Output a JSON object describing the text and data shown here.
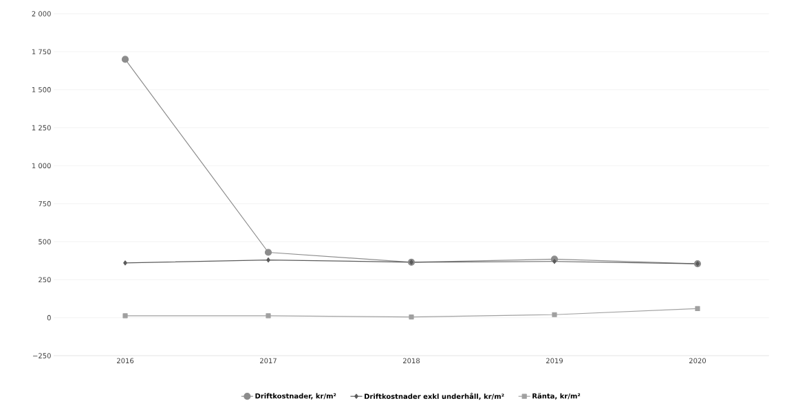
{
  "chart_data": {
    "type": "line",
    "categories": [
      "2016",
      "2017",
      "2018",
      "2019",
      "2020"
    ],
    "series": [
      {
        "name": "Driftkostnader, kr/m²",
        "color": "#8c8c8c",
        "marker": "circle",
        "values": [
          1700,
          430,
          365,
          385,
          355
        ]
      },
      {
        "name": "Driftkostnader exkl underhåll, kr/m²",
        "color": "#5a5a5a",
        "marker": "diamond",
        "values": [
          360,
          380,
          365,
          370,
          355
        ]
      },
      {
        "name": "Ränta, kr/m²",
        "color": "#a0a0a0",
        "marker": "square",
        "values": [
          13,
          13,
          5,
          20,
          60
        ]
      }
    ],
    "ylim": [
      -250,
      2000
    ],
    "yticks": [
      {
        "value": -250,
        "label": "−250"
      },
      0,
      250,
      500,
      750,
      {
        "value": 1000,
        "label": "1 000"
      },
      {
        "value": 1250,
        "label": "1 250"
      },
      {
        "value": 1500,
        "label": "1 500"
      },
      {
        "value": 1750,
        "label": "1 750"
      },
      {
        "value": 2000,
        "label": "2 000"
      }
    ],
    "grid": "y",
    "legend": "bottom",
    "line_style": "solid"
  }
}
